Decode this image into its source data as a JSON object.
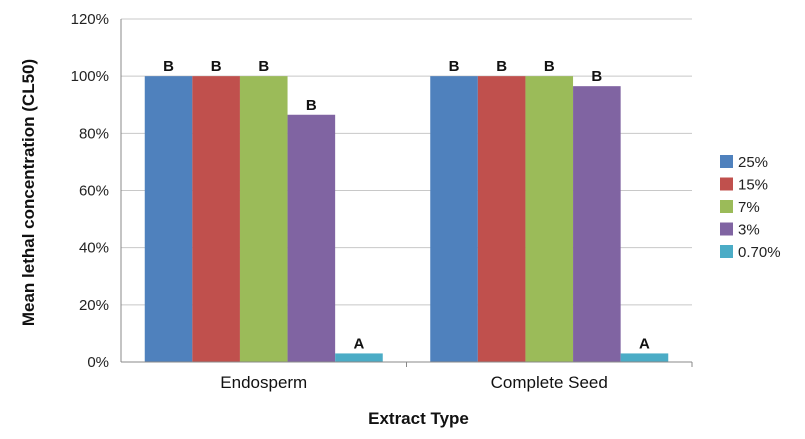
{
  "chart_data": {
    "type": "bar",
    "categories": [
      "Endosperm",
      "Complete Seed"
    ],
    "series": [
      {
        "name": "25%",
        "color": "#4f81bd",
        "values": [
          100,
          100
        ],
        "labels": [
          "B",
          "B"
        ]
      },
      {
        "name": "15%",
        "color": "#c0504d",
        "values": [
          100,
          100
        ],
        "labels": [
          "B",
          "B"
        ]
      },
      {
        "name": "7%",
        "color": "#9bbb59",
        "values": [
          100,
          100
        ],
        "labels": [
          "B",
          "B"
        ]
      },
      {
        "name": "3%",
        "color": "#8064a2",
        "values": [
          86.5,
          96.5
        ],
        "labels": [
          "B",
          "B"
        ]
      },
      {
        "name": "0.70%",
        "color": "#4bacc6",
        "values": [
          3,
          3
        ],
        "labels": [
          "A",
          "A"
        ]
      }
    ],
    "title": "",
    "xlabel": "Extract Type",
    "ylabel": "Mean lethal concentration (CL50)",
    "ylim": [
      0,
      120
    ],
    "yticks": [
      0,
      20,
      40,
      60,
      80,
      100,
      120
    ],
    "ytick_labels": [
      "0%",
      "20%",
      "40%",
      "60%",
      "80%",
      "100%",
      "120%"
    ],
    "legend_position": "right"
  }
}
